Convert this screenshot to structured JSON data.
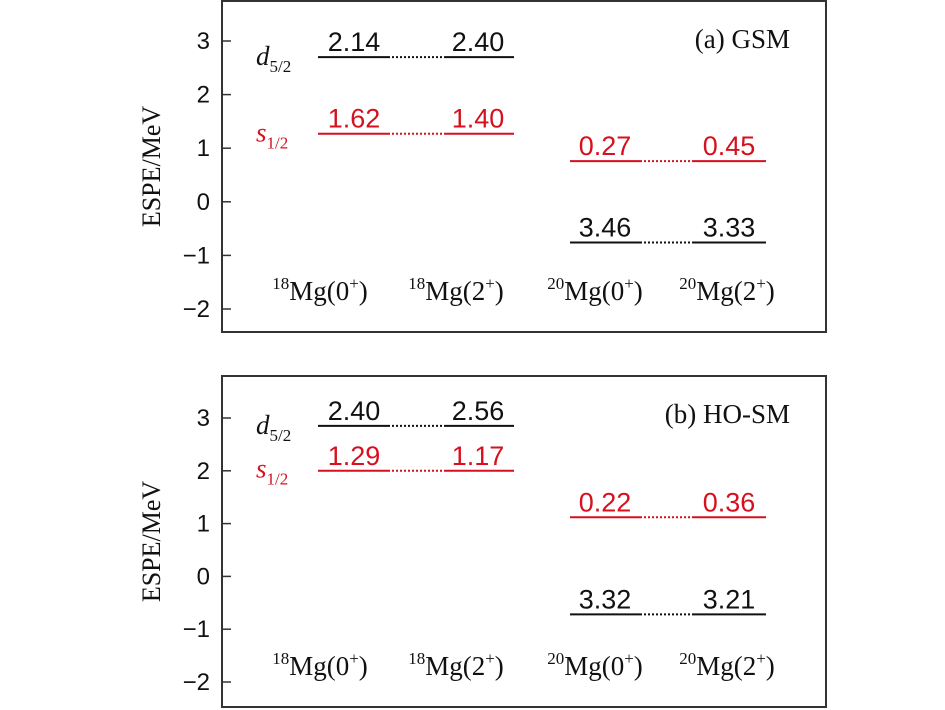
{
  "colors": {
    "s12": "#d6101e",
    "d52": "#111111",
    "frame": "#333333"
  },
  "chart_data": [
    {
      "type": "level-scheme",
      "title": "(a) GSM",
      "ylabel": "ESPE/MeV",
      "ylim": [
        -2.5,
        3.6
      ],
      "yticks": [
        3,
        2,
        1,
        0,
        -1,
        -2
      ],
      "ytick_labels": [
        "3",
        "2",
        "1",
        "0",
        "−1",
        "−2"
      ],
      "nuclei": [
        {
          "mass": "18",
          "label": "Mg(0",
          "spin_sup": "+",
          "close": ")"
        },
        {
          "mass": "18",
          "label": "Mg(2",
          "spin_sup": "+",
          "close": ")"
        },
        {
          "mass": "20",
          "label": "Mg(0",
          "spin_sup": "+",
          "close": ")"
        },
        {
          "mass": "20",
          "label": "Mg(2",
          "spin_sup": "+",
          "close": ")"
        }
      ],
      "orbital_labels": [
        {
          "main": "d",
          "sub": "5/2",
          "color": "#111111",
          "y": 2.7
        },
        {
          "main": "s",
          "sub": "1/2",
          "color": "#d6101e",
          "y": 1.27
        }
      ],
      "groups": [
        {
          "orbital": "d5/2",
          "color": "#111111",
          "energy": 2.7,
          "columns": [
            0,
            1
          ],
          "values": [
            "2.14",
            "2.40"
          ]
        },
        {
          "orbital": "s1/2",
          "color": "#d6101e",
          "energy": 1.27,
          "columns": [
            0,
            1
          ],
          "values": [
            "1.62",
            "1.40"
          ]
        },
        {
          "orbital": "s1/2",
          "color": "#d6101e",
          "energy": 0.76,
          "columns": [
            2,
            3
          ],
          "values": [
            "0.27",
            "0.45"
          ]
        },
        {
          "orbital": "d5/2",
          "color": "#111111",
          "energy": -0.76,
          "columns": [
            2,
            3
          ],
          "values": [
            "3.46",
            "3.33"
          ]
        }
      ]
    },
    {
      "type": "level-scheme",
      "title": "(b) HO-SM",
      "ylabel": "ESPE/MeV",
      "ylim": [
        -2.5,
        3.6
      ],
      "yticks": [
        3,
        2,
        1,
        0,
        -1,
        -2
      ],
      "ytick_labels": [
        "3",
        "2",
        "1",
        "0",
        "−1",
        "−2"
      ],
      "nuclei": [
        {
          "mass": "18",
          "label": "Mg(0",
          "spin_sup": "+",
          "close": ")"
        },
        {
          "mass": "18",
          "label": "Mg(2",
          "spin_sup": "+",
          "close": ")"
        },
        {
          "mass": "20",
          "label": "Mg(0",
          "spin_sup": "+",
          "close": ")"
        },
        {
          "mass": "20",
          "label": "Mg(2",
          "spin_sup": "+",
          "close": ")"
        }
      ],
      "orbital_labels": [
        {
          "main": "d",
          "sub": "5/2",
          "color": "#111111",
          "y": 2.85
        },
        {
          "main": "s",
          "sub": "1/2",
          "color": "#d6101e",
          "y": 2.02
        }
      ],
      "groups": [
        {
          "orbital": "d5/2",
          "color": "#111111",
          "energy": 2.85,
          "columns": [
            0,
            1
          ],
          "values": [
            "2.40",
            "2.56"
          ]
        },
        {
          "orbital": "s1/2",
          "color": "#d6101e",
          "energy": 2.0,
          "columns": [
            0,
            1
          ],
          "values": [
            "1.29",
            "1.17"
          ]
        },
        {
          "orbital": "s1/2",
          "color": "#d6101e",
          "energy": 1.12,
          "columns": [
            2,
            3
          ],
          "values": [
            "0.22",
            "0.36"
          ]
        },
        {
          "orbital": "d5/2",
          "color": "#111111",
          "energy": -0.72,
          "columns": [
            2,
            3
          ],
          "values": [
            "3.32",
            "3.21"
          ]
        }
      ]
    }
  ]
}
